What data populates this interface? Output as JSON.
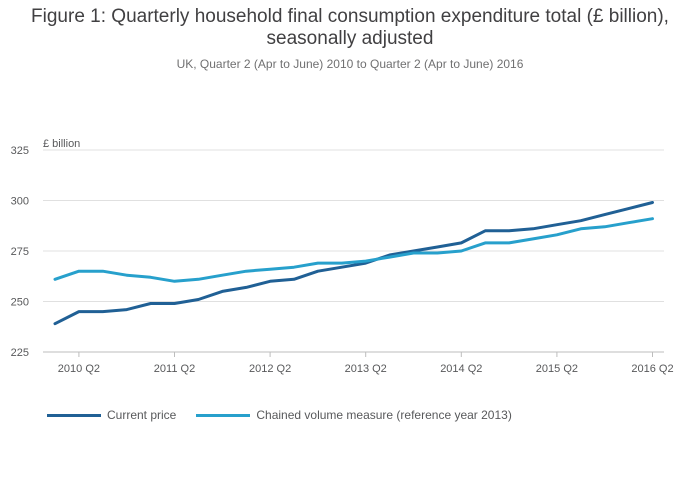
{
  "title": "Figure 1: Quarterly household final consumption expenditure total (£ billion), seasonally adjusted",
  "subtitle": "UK, Quarter 2 (Apr to June) 2010 to Quarter 2 (Apr to June) 2016",
  "colors": {
    "current": "#206095",
    "chained": "#27a0cc",
    "grid": "#e0e0e0",
    "axis": "#bdbdbd"
  },
  "chart_data": {
    "type": "line",
    "title": "Figure 1: Quarterly household final consumption expenditure total (£ billion), seasonally adjusted",
    "subtitle": "UK, Quarter 2 (Apr to June) 2010 to Quarter 2 (Apr to June) 2016",
    "ylabel": "£ billion",
    "xlabel": "",
    "ylim": [
      225,
      325
    ],
    "yticks": [
      225,
      250,
      275,
      300,
      325
    ],
    "x": [
      "2010 Q1",
      "2010 Q2",
      "2010 Q3",
      "2010 Q4",
      "2011 Q1",
      "2011 Q2",
      "2011 Q3",
      "2011 Q4",
      "2012 Q1",
      "2012 Q2",
      "2012 Q3",
      "2012 Q4",
      "2013 Q1",
      "2013 Q2",
      "2013 Q3",
      "2013 Q4",
      "2014 Q1",
      "2014 Q2",
      "2014 Q3",
      "2014 Q4",
      "2015 Q1",
      "2015 Q2",
      "2015 Q3",
      "2015 Q4",
      "2016 Q1",
      "2016 Q2"
    ],
    "xticks": [
      "2010 Q2",
      "2011 Q2",
      "2012 Q2",
      "2013 Q2",
      "2014 Q2",
      "2015 Q2",
      "2016 Q2"
    ],
    "grid": true,
    "legend": "bottom",
    "series": [
      {
        "name": "Current price",
        "color": "#206095",
        "values": [
          239,
          245,
          245,
          246,
          249,
          249,
          251,
          255,
          257,
          260,
          261,
          265,
          267,
          269,
          273,
          275,
          277,
          279,
          285,
          285,
          286,
          288,
          290,
          293,
          296,
          299
        ]
      },
      {
        "name": "Chained volume measure (reference year 2013)",
        "color": "#27a0cc",
        "values": [
          261,
          265,
          265,
          263,
          262,
          260,
          261,
          263,
          265,
          266,
          267,
          269,
          269,
          270,
          272,
          274,
          274,
          275,
          279,
          279,
          281,
          283,
          286,
          287,
          289,
          291
        ]
      }
    ]
  }
}
